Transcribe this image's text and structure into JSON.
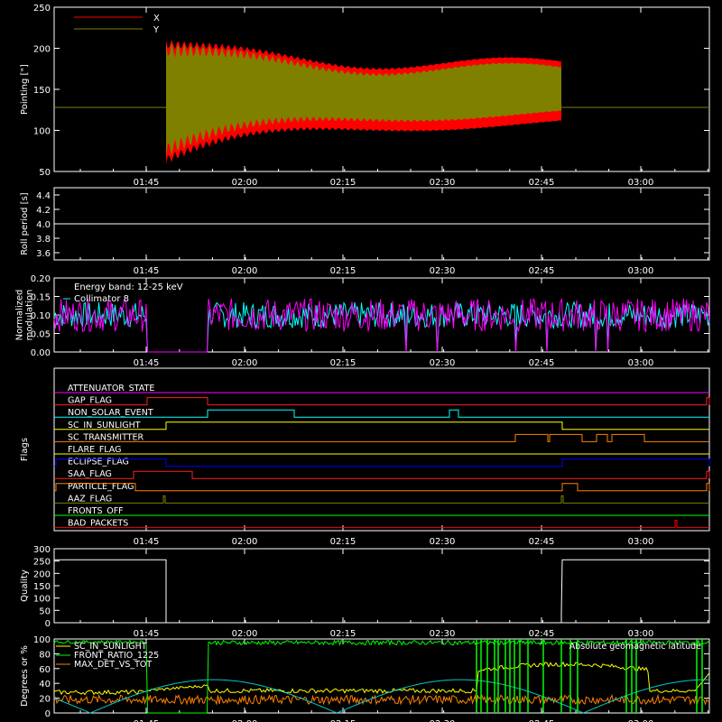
{
  "time_ticks": [
    "01:45",
    "02:00",
    "02:15",
    "02:30",
    "02:45",
    "03:00"
  ],
  "chart_data": [
    {
      "type": "area",
      "ylabel": "Pointing [\"]",
      "ylim": [
        50,
        250
      ],
      "yticks": [
        "50",
        "100",
        "150",
        "200",
        "250"
      ],
      "legend": [
        {
          "name": "X",
          "color": "#ff0000"
        },
        {
          "name": "Y",
          "color": "#808000"
        }
      ],
      "baseline": 128
    },
    {
      "type": "line",
      "ylabel": "Roll period [s]",
      "ylim": [
        3.5,
        4.5
      ],
      "yticks": [
        "3.6",
        "3.8",
        "4.0",
        "4.2",
        "4.4"
      ],
      "value": 4.0
    },
    {
      "type": "line",
      "ylabel_lines": [
        "Normalized",
        "modulation"
      ],
      "ylim": [
        0,
        0.2
      ],
      "yticks": [
        "0.00",
        "0.05",
        "0.10",
        "0.15",
        "0.20"
      ],
      "annotation": "Energy band: 12-25 keV",
      "legend": [
        {
          "name": "Collimator 8",
          "color": "#00ffff"
        },
        {
          "name": "",
          "color": "#ff00ff"
        }
      ]
    },
    {
      "type": "line",
      "ylabel": "Flags",
      "flags": [
        {
          "name": "ATTENUATOR_STATE",
          "color": "#ff00ff"
        },
        {
          "name": "GAP_FLAG",
          "color": "#ff2020"
        },
        {
          "name": "NON_SOLAR_EVENT",
          "color": "#00ffff"
        },
        {
          "name": "SC_IN_SUNLIGHT",
          "color": "#ffff00"
        },
        {
          "name": "SC_TRANSMITTER",
          "color": "#ff8000"
        },
        {
          "name": "FLARE_FLAG",
          "color": "#ffff00"
        },
        {
          "name": "ECLIPSE_FLAG",
          "color": "#0000ff"
        },
        {
          "name": "SAA_FLAG",
          "color": "#ff2020"
        },
        {
          "name": "PARTICLE_FLAG",
          "color": "#ff8000"
        },
        {
          "name": "AAZ_FLAG",
          "color": "#808000"
        },
        {
          "name": "FRONTS_OFF",
          "color": "#00ff00"
        },
        {
          "name": "BAD_PACKETS",
          "color": "#ff0000"
        }
      ]
    },
    {
      "type": "line",
      "ylabel": "Quality",
      "ylim": [
        0,
        300
      ],
      "yticks": [
        "0",
        "50",
        "100",
        "150",
        "200",
        "250",
        "300"
      ]
    },
    {
      "type": "line",
      "ylabel": "Degrees or %",
      "ylim": [
        0,
        100
      ],
      "yticks": [
        "0",
        "20",
        "40",
        "60",
        "80",
        "100"
      ],
      "legend": [
        {
          "name": "SC_IN_SUNLIGHT",
          "color": "#ffff00"
        },
        {
          "name": "FRONT_RATIO_1225",
          "color": "#00ff00"
        },
        {
          "name": "MAX_DET_VS_TOT",
          "color": "#ff8000"
        }
      ],
      "annotation": "Absolute geomagnetic latitude"
    }
  ]
}
